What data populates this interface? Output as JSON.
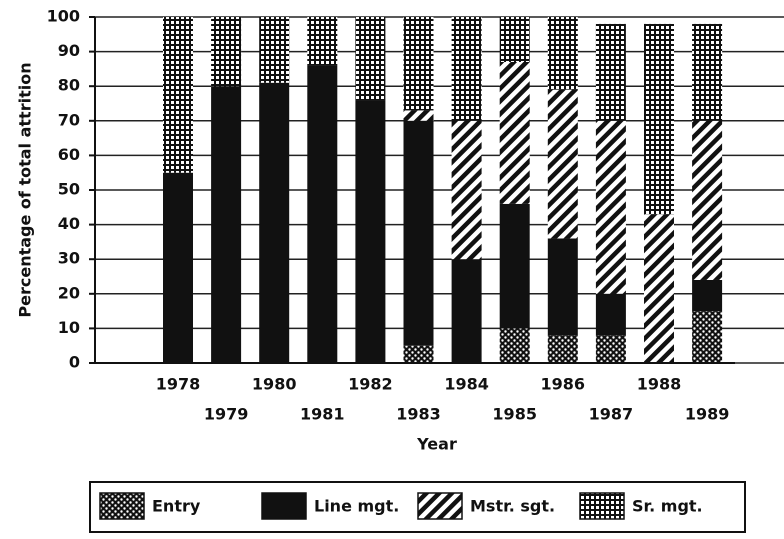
{
  "chart_data": {
    "type": "stacked_bar",
    "xlabel": "Year",
    "ylabel": "Percentage of total attrition",
    "categories": [
      "1978",
      "1979",
      "1980",
      "1981",
      "1982",
      "1983",
      "1984",
      "1985",
      "1986",
      "1987",
      "1988",
      "1989"
    ],
    "series": [
      {
        "name": "Entry",
        "color": "#000000",
        "pattern": "dots",
        "values": [
          0,
          0,
          0,
          0,
          0,
          5,
          0,
          10,
          8,
          8,
          0,
          15
        ]
      },
      {
        "name": "Line mgt.",
        "color": "#000000",
        "pattern": "solid",
        "values": [
          55,
          80,
          81,
          86,
          76,
          65,
          30,
          36,
          28,
          12,
          0,
          9
        ]
      },
      {
        "name": "Mstr. sgt.",
        "color": "#000000",
        "pattern": "hatch",
        "values": [
          0,
          0,
          0,
          0,
          0,
          3,
          40,
          41,
          43,
          50,
          43,
          46
        ]
      },
      {
        "name": "Sr. mgt.",
        "color": "#000000",
        "pattern": "grid",
        "values": [
          45,
          20,
          19,
          14,
          24,
          27,
          30,
          13,
          21,
          28,
          55,
          28
        ]
      }
    ],
    "ylim": [
      0,
      100
    ],
    "yticks": [
      0,
      10,
      20,
      30,
      40,
      50,
      60,
      70,
      80,
      90,
      100
    ],
    "grid": true,
    "legend": "bottom"
  }
}
